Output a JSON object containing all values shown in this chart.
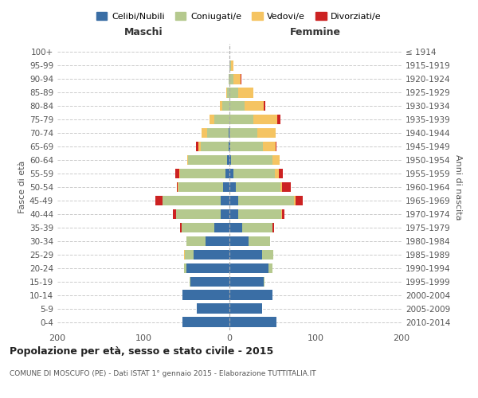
{
  "age_groups": [
    "0-4",
    "5-9",
    "10-14",
    "15-19",
    "20-24",
    "25-29",
    "30-34",
    "35-39",
    "40-44",
    "45-49",
    "50-54",
    "55-59",
    "60-64",
    "65-69",
    "70-74",
    "75-79",
    "80-84",
    "85-89",
    "90-94",
    "95-99",
    "100+"
  ],
  "birth_years": [
    "2010-2014",
    "2005-2009",
    "2000-2004",
    "1995-1999",
    "1990-1994",
    "1985-1989",
    "1980-1984",
    "1975-1979",
    "1970-1974",
    "1965-1969",
    "1960-1964",
    "1955-1959",
    "1950-1954",
    "1945-1949",
    "1940-1944",
    "1935-1939",
    "1930-1934",
    "1925-1929",
    "1920-1924",
    "1915-1919",
    "≤ 1914"
  ],
  "maschi": {
    "celibi": [
      55,
      38,
      55,
      45,
      50,
      42,
      28,
      18,
      10,
      10,
      7,
      5,
      3,
      1,
      1,
      0,
      0,
      0,
      0,
      0,
      0
    ],
    "coniugati": [
      0,
      0,
      0,
      1,
      3,
      10,
      22,
      38,
      52,
      68,
      52,
      52,
      45,
      32,
      25,
      18,
      8,
      3,
      1,
      0,
      0
    ],
    "vedovi": [
      0,
      0,
      0,
      0,
      0,
      1,
      0,
      0,
      0,
      0,
      1,
      1,
      1,
      3,
      6,
      5,
      3,
      1,
      0,
      0,
      0
    ],
    "divorziati": [
      0,
      0,
      0,
      0,
      0,
      0,
      0,
      1,
      4,
      8,
      1,
      5,
      0,
      3,
      0,
      0,
      0,
      0,
      0,
      0,
      0
    ]
  },
  "femmine": {
    "nubili": [
      55,
      38,
      50,
      40,
      45,
      38,
      22,
      15,
      10,
      10,
      7,
      5,
      2,
      1,
      0,
      0,
      0,
      0,
      0,
      0,
      0
    ],
    "coniugate": [
      0,
      0,
      0,
      1,
      5,
      13,
      25,
      35,
      50,
      65,
      52,
      48,
      48,
      38,
      32,
      28,
      18,
      10,
      5,
      2,
      0
    ],
    "vedove": [
      0,
      0,
      0,
      0,
      0,
      0,
      0,
      0,
      1,
      2,
      2,
      4,
      8,
      15,
      22,
      28,
      22,
      18,
      8,
      3,
      0
    ],
    "divorziate": [
      0,
      0,
      0,
      0,
      0,
      0,
      0,
      2,
      3,
      8,
      10,
      5,
      0,
      1,
      0,
      3,
      2,
      0,
      1,
      0,
      0
    ]
  },
  "colors": {
    "celibi": "#3a6ea5",
    "coniugati": "#b5c98e",
    "vedovi": "#f5c462",
    "divorziati": "#cc2222"
  },
  "xlim": [
    -200,
    200
  ],
  "xticks": [
    -200,
    -100,
    0,
    100,
    200
  ],
  "xticklabels": [
    "200",
    "100",
    "0",
    "100",
    "200"
  ],
  "title": "Popolazione per età, sesso e stato civile - 2015",
  "subtitle": "COMUNE DI MOSCUFO (PE) - Dati ISTAT 1° gennaio 2015 - Elaborazione TUTTITALIA.IT",
  "ylabel_left": "Fasce di età",
  "ylabel_right": "Anni di nascita",
  "legend_labels": [
    "Celibi/Nubili",
    "Coniugati/e",
    "Vedovi/e",
    "Divorziati/e"
  ],
  "background_color": "#ffffff",
  "grid_color": "#cccccc"
}
